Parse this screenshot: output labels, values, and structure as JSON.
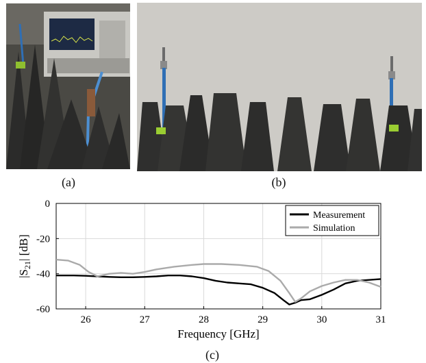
{
  "panels": {
    "a_label": "(a)",
    "b_label": "(b)",
    "c_label": "(c)"
  },
  "chart_data": {
    "type": "line",
    "xlabel": "Frequency [GHz]",
    "ylabel": "|S21| [dB]",
    "ylabel_base": "|S",
    "ylabel_sub": "21",
    "ylabel_tail": "| [dB]",
    "xlim": [
      25.5,
      31
    ],
    "ylim": [
      -60,
      0
    ],
    "x_ticks": [
      26,
      27,
      28,
      29,
      30,
      31
    ],
    "y_ticks": [
      0,
      -20,
      -40,
      -60
    ],
    "x_tick_labels": [
      "26",
      "27",
      "28",
      "29",
      "30",
      "31"
    ],
    "y_tick_labels": [
      "0",
      "-20",
      "-40",
      "-60"
    ],
    "grid": true,
    "legend_position": "top-right",
    "series": [
      {
        "name": "Measurement",
        "color": "#000000",
        "x": [
          25.5,
          25.8,
          26.0,
          26.2,
          26.4,
          26.6,
          26.8,
          27.0,
          27.2,
          27.4,
          27.6,
          27.8,
          28.0,
          28.2,
          28.4,
          28.6,
          28.8,
          29.0,
          29.2,
          29.35,
          29.45,
          29.55,
          29.65,
          29.8,
          30.0,
          30.2,
          30.4,
          30.6,
          30.8,
          31.0
        ],
        "y": [
          -41,
          -41,
          -41.2,
          -41.5,
          -41.8,
          -42,
          -42,
          -41.8,
          -41.5,
          -41,
          -41,
          -41.5,
          -42.5,
          -44,
          -45,
          -45.5,
          -46,
          -48,
          -51,
          -55,
          -57.5,
          -56.5,
          -55,
          -54.5,
          -52,
          -49,
          -45.5,
          -44,
          -43.5,
          -43
        ]
      },
      {
        "name": "Simulation",
        "color": "#aaaaaa",
        "x": [
          25.5,
          25.7,
          25.9,
          26.05,
          26.2,
          26.4,
          26.6,
          26.8,
          27.0,
          27.2,
          27.5,
          27.8,
          28.0,
          28.3,
          28.6,
          28.9,
          29.1,
          29.3,
          29.45,
          29.55,
          29.65,
          29.8,
          30.0,
          30.2,
          30.4,
          30.6,
          30.8,
          31.0
        ],
        "y": [
          -32,
          -32.5,
          -35,
          -39,
          -41.5,
          -40,
          -39.5,
          -40,
          -39,
          -37.5,
          -36,
          -35,
          -34.5,
          -34.5,
          -35,
          -36,
          -38.5,
          -44,
          -51,
          -56,
          -54,
          -50,
          -47,
          -45,
          -43.5,
          -43.5,
          -45,
          -47.5
        ]
      }
    ]
  }
}
